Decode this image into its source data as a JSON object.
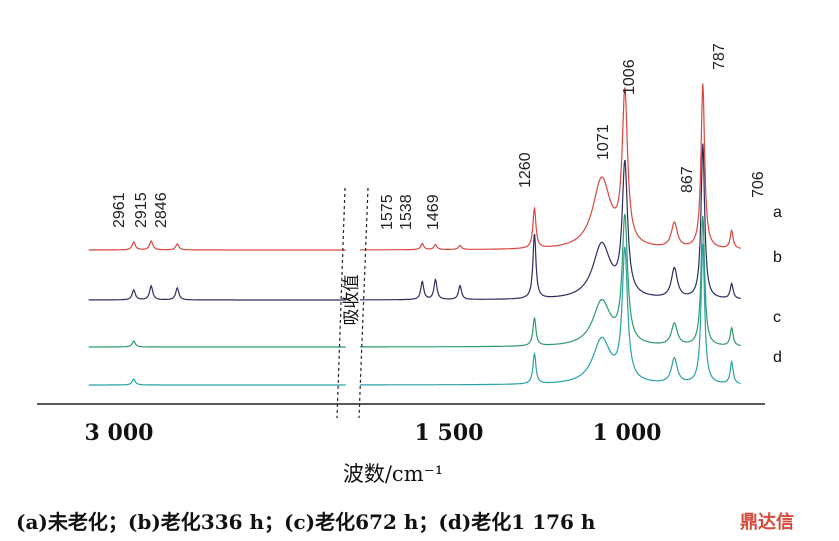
{
  "chart_data": {
    "type": "line",
    "xlabel": "波数/cm⁻¹",
    "ylabel_vertical": "吸收值",
    "x_reversed": true,
    "axis_break": {
      "from": 2400,
      "to": 1750
    },
    "x_ticks": [
      {
        "value": 3000,
        "label": "3 000"
      },
      {
        "value": 1500,
        "label": "1 500"
      },
      {
        "value": 1000,
        "label": "1 000"
      }
    ],
    "peak_labels": [
      "2961",
      "2915",
      "2846",
      "1575",
      "1538",
      "1469",
      "1260",
      "1071",
      "1006",
      "867",
      "787",
      "706"
    ],
    "series": [
      {
        "name": "a",
        "color": "#d9473f",
        "baseline": 250,
        "peaks": [
          [
            2961,
            8
          ],
          [
            2915,
            9
          ],
          [
            2846,
            6
          ],
          [
            1575,
            6
          ],
          [
            1538,
            5
          ],
          [
            1469,
            4
          ],
          [
            1260,
            40
          ],
          [
            1071,
            70
          ],
          [
            1006,
            150
          ],
          [
            867,
            25
          ],
          [
            787,
            165
          ],
          [
            706,
            18
          ]
        ]
      },
      {
        "name": "b",
        "color": "#2e2e5e",
        "baseline": 300,
        "peaks": [
          [
            2961,
            10
          ],
          [
            2915,
            14
          ],
          [
            2846,
            12
          ],
          [
            1575,
            18
          ],
          [
            1538,
            20
          ],
          [
            1469,
            14
          ],
          [
            1260,
            65
          ],
          [
            1071,
            55
          ],
          [
            1006,
            130
          ],
          [
            867,
            30
          ],
          [
            787,
            155
          ],
          [
            706,
            15
          ]
        ]
      },
      {
        "name": "c",
        "color": "#2e9b6a",
        "baseline": 347,
        "peaks": [
          [
            2961,
            6
          ],
          [
            1260,
            28
          ],
          [
            1071,
            45
          ],
          [
            1006,
            125
          ],
          [
            867,
            22
          ],
          [
            787,
            130
          ],
          [
            706,
            18
          ]
        ]
      },
      {
        "name": "d",
        "color": "#2aa2a6",
        "baseline": 385,
        "peaks": [
          [
            2961,
            6
          ],
          [
            1260,
            30
          ],
          [
            1071,
            45
          ],
          [
            1006,
            130
          ],
          [
            867,
            25
          ],
          [
            787,
            140
          ],
          [
            706,
            22
          ]
        ]
      }
    ],
    "legend": [
      "a",
      "b",
      "c",
      "d"
    ]
  },
  "caption": "(a)未老化；(b)老化336 h；(c)老化672 h；(d)老化1 176 h",
  "watermark": "鼎达信"
}
